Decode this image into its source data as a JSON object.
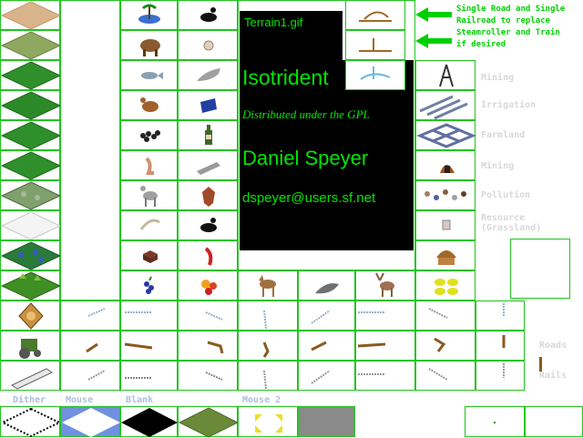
{
  "sheet": {
    "filename": "Terrain1.gif",
    "title": "Isotrident",
    "license": "Distributed under the GPL",
    "author": "Daniel Speyer",
    "email": "dspeyer@users.sf.net"
  },
  "note": {
    "text": "Single Road and Single Railroad to replace Steamroller and Train if desired"
  },
  "special_labels": [
    "Mining",
    "Irrigation",
    "Farmland",
    "Mining",
    "Pollution",
    "Resource (Grassland)"
  ],
  "faint_labels": [
    "Roads",
    "Rails"
  ],
  "bottom_labels": [
    "Dither",
    "Mouse",
    "Blank",
    "Mouse 2"
  ],
  "colors": {
    "grid_line": "#21c51e",
    "text_green": "#00e600",
    "label_blue": "#a8c0e0",
    "grass": "#2f8f2a",
    "desert": "#d9b48a"
  },
  "icons": [
    "desert-tile",
    "plains-tile",
    "grassland-tile",
    "forest-tile",
    "hills-tile",
    "jungle-tile",
    "tundra-tile",
    "arctic-tile",
    "swamp-tile",
    "jungle-dense-tile",
    "oasis-icon",
    "buffalo-icon",
    "fish-icon",
    "pheasant-icon",
    "coal-icon",
    "peat-icon",
    "deer-icon",
    "ivory-icon",
    "gems-icon",
    "fruit-icon",
    "oil-icon",
    "wheat-icon",
    "whale-icon",
    "silk-icon",
    "wine-icon",
    "iron-icon",
    "furs-icon",
    "spices-icon",
    "horse-icon",
    "seal-icon",
    "stag-icon",
    "fortress-icon",
    "hut-icon",
    "pollution-icon",
    "farmland-icon",
    "irrigation-icon",
    "mine-icon",
    "road-icon",
    "rail-icon",
    "steamroller-icon",
    "train-icon",
    "mouse-cursor-icon",
    "arrow-icon"
  ]
}
